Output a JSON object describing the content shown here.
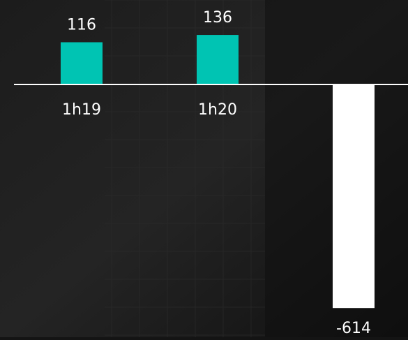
{
  "chart_data": {
    "type": "bar",
    "categories": [
      "1h19",
      "1h20",
      null
    ],
    "values": [
      116,
      136,
      -614
    ],
    "colors": [
      "#00c4b3",
      "#00c4b3",
      "#ffffff"
    ]
  }
}
